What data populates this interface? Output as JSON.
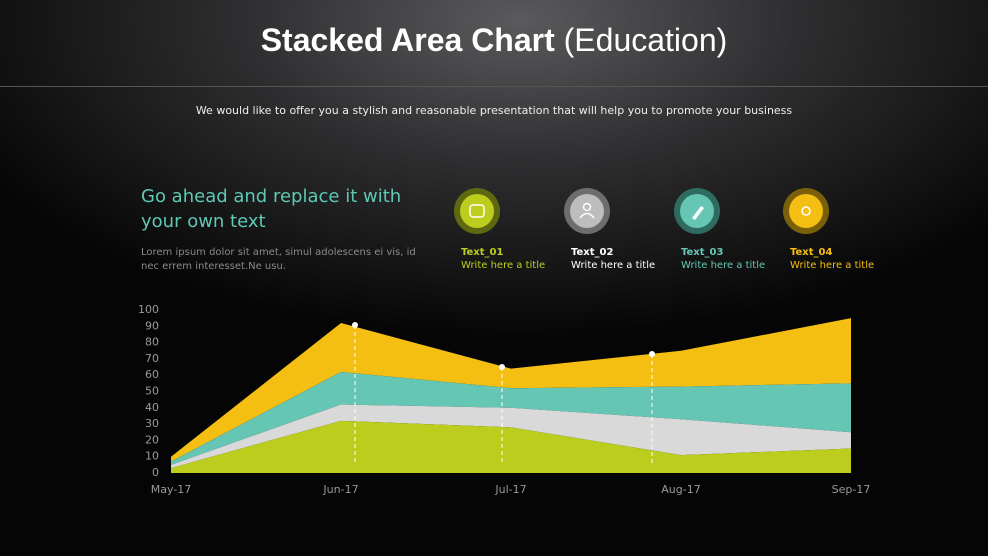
{
  "header": {
    "title_main": "Stacked Area Chart",
    "title_paren": "(Education)",
    "subtitle": "We would like to offer you a stylish and reasonable  presentation  that will help you to promote your business"
  },
  "intro": {
    "heading": "Go ahead and replace it with your own text",
    "body": "Lorem ipsum dolor sit amet, simul adolescens ei vis, id nec errem interesset.Ne usu."
  },
  "legend_subtitles": [
    "Write here a title",
    "Write here a title",
    "Write here a title",
    "Write here a title"
  ],
  "chart_data": {
    "type": "stacked_area",
    "categories": [
      "May-17",
      "Jun-17",
      "Jul-17",
      "Aug-17",
      "Sep-17"
    ],
    "series": [
      {
        "name": "Text_01",
        "color": "#bccd1e",
        "values": [
          3,
          32,
          28,
          11,
          15
        ]
      },
      {
        "name": "Text_02",
        "color": "#d9d9d9",
        "values": [
          2,
          10,
          12,
          22,
          10
        ]
      },
      {
        "name": "Text_03",
        "color": "#66c6b4",
        "values": [
          2,
          20,
          12,
          20,
          30
        ]
      },
      {
        "name": "Text_04",
        "color": "#f4bf12",
        "values": [
          3,
          30,
          12,
          22,
          40
        ]
      }
    ],
    "ylim": [
      0,
      100
    ],
    "yticks": [
      0,
      10,
      20,
      30,
      40,
      50,
      60,
      70,
      80,
      90,
      100
    ],
    "grid": false
  }
}
